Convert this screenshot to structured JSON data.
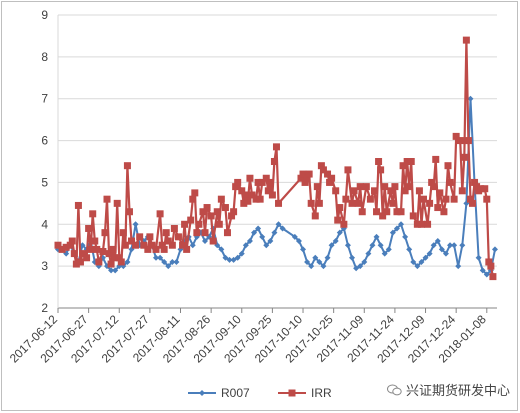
{
  "chart_data": {
    "type": "line",
    "title": "",
    "xlabel": "",
    "ylabel": "",
    "ylim": [
      2,
      9
    ],
    "yticks": [
      2,
      3,
      4,
      5,
      6,
      7,
      8,
      9
    ],
    "xlim": [
      "2017-06-12",
      "2018-01-13"
    ],
    "xticks": [
      "2017-06-12",
      "2017-06-27",
      "2017-07-12",
      "2017-07-27",
      "2017-08-11",
      "2017-08-26",
      "2017-09-10",
      "2017-09-25",
      "2017-10-10",
      "2017-10-25",
      "2017-11-09",
      "2017-11-24",
      "2017-12-09",
      "2017-12-24",
      "2018-01-08"
    ],
    "grid": "horizontal",
    "legend": "bottom",
    "series": [
      {
        "name": "R007",
        "color": "#4a7ebb",
        "marker": "diamond",
        "points": [
          [
            "2017-06-12",
            3.4
          ],
          [
            "2017-06-14",
            3.4
          ],
          [
            "2017-06-16",
            3.3
          ],
          [
            "2017-06-18",
            3.5
          ],
          [
            "2017-06-20",
            3.3
          ],
          [
            "2017-06-22",
            3.1
          ],
          [
            "2017-06-24",
            3.5
          ],
          [
            "2017-06-26",
            3.4
          ],
          [
            "2017-06-28",
            3.6
          ],
          [
            "2017-06-30",
            3.1
          ],
          [
            "2017-07-02",
            3.0
          ],
          [
            "2017-07-04",
            3.2
          ],
          [
            "2017-07-06",
            3.0
          ],
          [
            "2017-07-08",
            2.9
          ],
          [
            "2017-07-10",
            2.9
          ],
          [
            "2017-07-12",
            3.0
          ],
          [
            "2017-07-14",
            3.0
          ],
          [
            "2017-07-16",
            3.1
          ],
          [
            "2017-07-18",
            3.4
          ],
          [
            "2017-07-20",
            4.0
          ],
          [
            "2017-07-22",
            3.5
          ],
          [
            "2017-07-24",
            3.6
          ],
          [
            "2017-07-26",
            3.7
          ],
          [
            "2017-07-28",
            3.5
          ],
          [
            "2017-07-30",
            3.2
          ],
          [
            "2017-08-01",
            3.2
          ],
          [
            "2017-08-03",
            3.1
          ],
          [
            "2017-08-05",
            3.0
          ],
          [
            "2017-08-07",
            3.1
          ],
          [
            "2017-08-09",
            3.1
          ],
          [
            "2017-08-11",
            3.4
          ],
          [
            "2017-08-13",
            3.6
          ],
          [
            "2017-08-15",
            3.7
          ],
          [
            "2017-08-17",
            3.5
          ],
          [
            "2017-08-19",
            3.7
          ],
          [
            "2017-08-21",
            3.8
          ],
          [
            "2017-08-23",
            3.6
          ],
          [
            "2017-08-25",
            3.7
          ],
          [
            "2017-08-27",
            3.9
          ],
          [
            "2017-08-29",
            3.5
          ],
          [
            "2017-08-31",
            3.4
          ],
          [
            "2017-09-02",
            3.2
          ],
          [
            "2017-09-04",
            3.15
          ],
          [
            "2017-09-06",
            3.15
          ],
          [
            "2017-09-08",
            3.2
          ],
          [
            "2017-09-10",
            3.3
          ],
          [
            "2017-09-12",
            3.5
          ],
          [
            "2017-09-14",
            3.6
          ],
          [
            "2017-09-16",
            3.8
          ],
          [
            "2017-09-18",
            3.9
          ],
          [
            "2017-09-20",
            3.7
          ],
          [
            "2017-09-22",
            3.5
          ],
          [
            "2017-09-24",
            3.6
          ],
          [
            "2017-09-26",
            3.8
          ],
          [
            "2017-09-28",
            4.0
          ],
          [
            "2017-09-30",
            3.9
          ],
          [
            "2017-10-06",
            3.7
          ],
          [
            "2017-10-08",
            3.6
          ],
          [
            "2017-10-10",
            3.4
          ],
          [
            "2017-10-12",
            3.1
          ],
          [
            "2017-10-14",
            3.0
          ],
          [
            "2017-10-16",
            3.2
          ],
          [
            "2017-10-18",
            3.1
          ],
          [
            "2017-10-20",
            3.0
          ],
          [
            "2017-10-22",
            3.2
          ],
          [
            "2017-10-24",
            3.5
          ],
          [
            "2017-10-26",
            3.6
          ],
          [
            "2017-10-28",
            3.8
          ],
          [
            "2017-10-30",
            3.9
          ],
          [
            "2017-11-01",
            3.5
          ],
          [
            "2017-11-03",
            3.2
          ],
          [
            "2017-11-05",
            2.95
          ],
          [
            "2017-11-07",
            3.0
          ],
          [
            "2017-11-09",
            3.1
          ],
          [
            "2017-11-11",
            3.3
          ],
          [
            "2017-11-13",
            3.5
          ],
          [
            "2017-11-15",
            3.7
          ],
          [
            "2017-11-17",
            3.5
          ],
          [
            "2017-11-19",
            3.3
          ],
          [
            "2017-11-21",
            3.4
          ],
          [
            "2017-11-23",
            3.8
          ],
          [
            "2017-11-25",
            3.9
          ],
          [
            "2017-11-27",
            4.0
          ],
          [
            "2017-11-29",
            3.7
          ],
          [
            "2017-12-01",
            3.4
          ],
          [
            "2017-12-03",
            3.1
          ],
          [
            "2017-12-05",
            3.0
          ],
          [
            "2017-12-07",
            3.1
          ],
          [
            "2017-12-09",
            3.2
          ],
          [
            "2017-12-11",
            3.3
          ],
          [
            "2017-12-13",
            3.5
          ],
          [
            "2017-12-15",
            3.6
          ],
          [
            "2017-12-17",
            3.4
          ],
          [
            "2017-12-19",
            3.3
          ],
          [
            "2017-12-21",
            3.5
          ],
          [
            "2017-12-23",
            3.5
          ],
          [
            "2017-12-25",
            3.0
          ],
          [
            "2017-12-27",
            3.5
          ],
          [
            "2017-12-29",
            4.5
          ],
          [
            "2017-12-31",
            7.0
          ],
          [
            "2018-01-02",
            5.0
          ],
          [
            "2018-01-04",
            3.2
          ],
          [
            "2018-01-06",
            2.9
          ],
          [
            "2018-01-08",
            2.8
          ],
          [
            "2018-01-10",
            2.9
          ],
          [
            "2018-01-12",
            3.4
          ]
        ]
      },
      {
        "name": "IRR",
        "color": "#be4b48",
        "marker": "square",
        "points": [
          [
            "2017-06-12",
            3.5
          ],
          [
            "2017-06-14",
            3.4
          ],
          [
            "2017-06-16",
            3.45
          ],
          [
            "2017-06-18",
            3.5
          ],
          [
            "2017-06-19",
            3.6
          ],
          [
            "2017-06-20",
            3.3
          ],
          [
            "2017-06-21",
            3.05
          ],
          [
            "2017-06-22",
            4.45
          ],
          [
            "2017-06-23",
            3.1
          ],
          [
            "2017-06-24",
            3.3
          ],
          [
            "2017-06-26",
            3.2
          ],
          [
            "2017-06-27",
            3.9
          ],
          [
            "2017-06-28",
            3.4
          ],
          [
            "2017-06-29",
            4.25
          ],
          [
            "2017-06-30",
            3.6
          ],
          [
            "2017-07-01",
            3.4
          ],
          [
            "2017-07-02",
            3.1
          ],
          [
            "2017-07-04",
            3.35
          ],
          [
            "2017-07-05",
            3.8
          ],
          [
            "2017-07-06",
            4.6
          ],
          [
            "2017-07-07",
            3.3
          ],
          [
            "2017-07-08",
            3.05
          ],
          [
            "2017-07-09",
            3.4
          ],
          [
            "2017-07-10",
            3.2
          ],
          [
            "2017-07-11",
            4.5
          ],
          [
            "2017-07-12",
            3.2
          ],
          [
            "2017-07-13",
            3.1
          ],
          [
            "2017-07-14",
            3.8
          ],
          [
            "2017-07-15",
            3.5
          ],
          [
            "2017-07-16",
            5.4
          ],
          [
            "2017-07-17",
            4.3
          ],
          [
            "2017-07-18",
            3.6
          ],
          [
            "2017-07-20",
            3.5
          ],
          [
            "2017-07-22",
            3.7
          ],
          [
            "2017-07-24",
            3.5
          ],
          [
            "2017-07-26",
            3.4
          ],
          [
            "2017-07-27",
            3.7
          ],
          [
            "2017-07-28",
            3.5
          ],
          [
            "2017-07-30",
            3.4
          ],
          [
            "2017-08-01",
            4.25
          ],
          [
            "2017-08-02",
            3.5
          ],
          [
            "2017-08-03",
            3.4
          ],
          [
            "2017-08-04",
            3.8
          ],
          [
            "2017-08-05",
            3.6
          ],
          [
            "2017-08-07",
            3.5
          ],
          [
            "2017-08-08",
            3.9
          ],
          [
            "2017-08-10",
            3.7
          ],
          [
            "2017-08-12",
            3.5
          ],
          [
            "2017-08-13",
            4.0
          ],
          [
            "2017-08-14",
            3.4
          ],
          [
            "2017-08-16",
            4.1
          ],
          [
            "2017-08-17",
            4.6
          ],
          [
            "2017-08-18",
            4.75
          ],
          [
            "2017-08-19",
            3.8
          ],
          [
            "2017-08-20",
            4.0
          ],
          [
            "2017-08-22",
            4.3
          ],
          [
            "2017-08-23",
            3.8
          ],
          [
            "2017-08-24",
            4.4
          ],
          [
            "2017-08-26",
            4.2
          ],
          [
            "2017-08-27",
            3.6
          ],
          [
            "2017-08-29",
            4.3
          ],
          [
            "2017-08-30",
            4.0
          ],
          [
            "2017-08-31",
            4.6
          ],
          [
            "2017-09-02",
            4.4
          ],
          [
            "2017-09-03",
            3.8
          ],
          [
            "2017-09-05",
            4.2
          ],
          [
            "2017-09-06",
            4.3
          ],
          [
            "2017-09-07",
            4.9
          ],
          [
            "2017-09-08",
            5.0
          ],
          [
            "2017-09-10",
            4.8
          ],
          [
            "2017-09-11",
            4.5
          ],
          [
            "2017-09-12",
            4.7
          ],
          [
            "2017-09-13",
            4.55
          ],
          [
            "2017-09-14",
            5.1
          ],
          [
            "2017-09-15",
            4.7
          ],
          [
            "2017-09-17",
            4.6
          ],
          [
            "2017-09-18",
            5.0
          ],
          [
            "2017-09-19",
            4.6
          ],
          [
            "2017-09-20",
            5.0
          ],
          [
            "2017-09-22",
            5.1
          ],
          [
            "2017-09-23",
            4.8
          ],
          [
            "2017-09-24",
            5.0
          ],
          [
            "2017-09-25",
            4.7
          ],
          [
            "2017-09-26",
            5.5
          ],
          [
            "2017-09-27",
            5.85
          ],
          [
            "2017-09-28",
            4.5
          ],
          [
            "2017-10-09",
            5.1
          ],
          [
            "2017-10-10",
            5.2
          ],
          [
            "2017-10-11",
            5.0
          ],
          [
            "2017-10-12",
            5.1
          ],
          [
            "2017-10-13",
            5.2
          ],
          [
            "2017-10-14",
            4.5
          ],
          [
            "2017-10-16",
            4.2
          ],
          [
            "2017-10-17",
            4.9
          ],
          [
            "2017-10-18",
            4.5
          ],
          [
            "2017-10-19",
            5.4
          ],
          [
            "2017-10-20",
            5.3
          ],
          [
            "2017-10-22",
            5.2
          ],
          [
            "2017-10-23",
            5.0
          ],
          [
            "2017-10-24",
            5.1
          ],
          [
            "2017-10-26",
            4.8
          ],
          [
            "2017-10-27",
            4.1
          ],
          [
            "2017-10-28",
            4.4
          ],
          [
            "2017-10-30",
            4.0
          ],
          [
            "2017-10-31",
            4.6
          ],
          [
            "2017-11-01",
            5.3
          ],
          [
            "2017-11-03",
            4.5
          ],
          [
            "2017-11-04",
            4.8
          ],
          [
            "2017-11-06",
            4.5
          ],
          [
            "2017-11-07",
            4.9
          ],
          [
            "2017-11-08",
            4.3
          ],
          [
            "2017-11-10",
            4.9
          ],
          [
            "2017-11-12",
            4.6
          ],
          [
            "2017-11-14",
            4.8
          ],
          [
            "2017-11-15",
            4.3
          ],
          [
            "2017-11-16",
            5.5
          ],
          [
            "2017-11-17",
            5.3
          ],
          [
            "2017-11-18",
            4.2
          ],
          [
            "2017-11-19",
            4.9
          ],
          [
            "2017-11-20",
            4.3
          ],
          [
            "2017-11-22",
            4.8
          ],
          [
            "2017-11-23",
            4.5
          ],
          [
            "2017-11-24",
            4.9
          ],
          [
            "2017-11-25",
            4.3
          ],
          [
            "2017-11-27",
            4.3
          ],
          [
            "2017-11-28",
            5.4
          ],
          [
            "2017-11-29",
            4.8
          ],
          [
            "2017-11-30",
            5.5
          ],
          [
            "2017-12-01",
            4.9
          ],
          [
            "2017-12-02",
            5.5
          ],
          [
            "2017-12-03",
            4.2
          ],
          [
            "2017-12-05",
            4.0
          ],
          [
            "2017-12-06",
            4.8
          ],
          [
            "2017-12-07",
            4.0
          ],
          [
            "2017-12-08",
            4.6
          ],
          [
            "2017-12-10",
            4.0
          ],
          [
            "2017-12-11",
            4.5
          ],
          [
            "2017-12-12",
            5.0
          ],
          [
            "2017-12-13",
            4.9
          ],
          [
            "2017-12-14",
            5.55
          ],
          [
            "2017-12-15",
            4.4
          ],
          [
            "2017-12-16",
            4.75
          ],
          [
            "2017-12-18",
            4.3
          ],
          [
            "2017-12-19",
            4.6
          ],
          [
            "2017-12-20",
            5.4
          ],
          [
            "2017-12-21",
            5.0
          ],
          [
            "2017-12-23",
            4.6
          ],
          [
            "2017-12-24",
            6.1
          ],
          [
            "2017-12-26",
            6.0
          ],
          [
            "2017-12-27",
            4.8
          ],
          [
            "2017-12-28",
            5.6
          ],
          [
            "2017-12-29",
            8.4
          ],
          [
            "2017-12-30",
            6.0
          ],
          [
            "2017-12-31",
            4.6
          ],
          [
            "2018-01-01",
            4.5
          ],
          [
            "2018-01-02",
            5.0
          ],
          [
            "2018-01-03",
            4.9
          ],
          [
            "2018-01-04",
            4.8
          ],
          [
            "2018-01-05",
            4.85
          ],
          [
            "2018-01-07",
            4.85
          ],
          [
            "2018-01-08",
            4.6
          ],
          [
            "2018-01-09",
            3.1
          ],
          [
            "2018-01-10",
            3.0
          ],
          [
            "2018-01-11",
            2.75
          ]
        ]
      }
    ]
  },
  "watermark": {
    "text": "兴证期货研发中心",
    "icon": "wechat-icon"
  }
}
